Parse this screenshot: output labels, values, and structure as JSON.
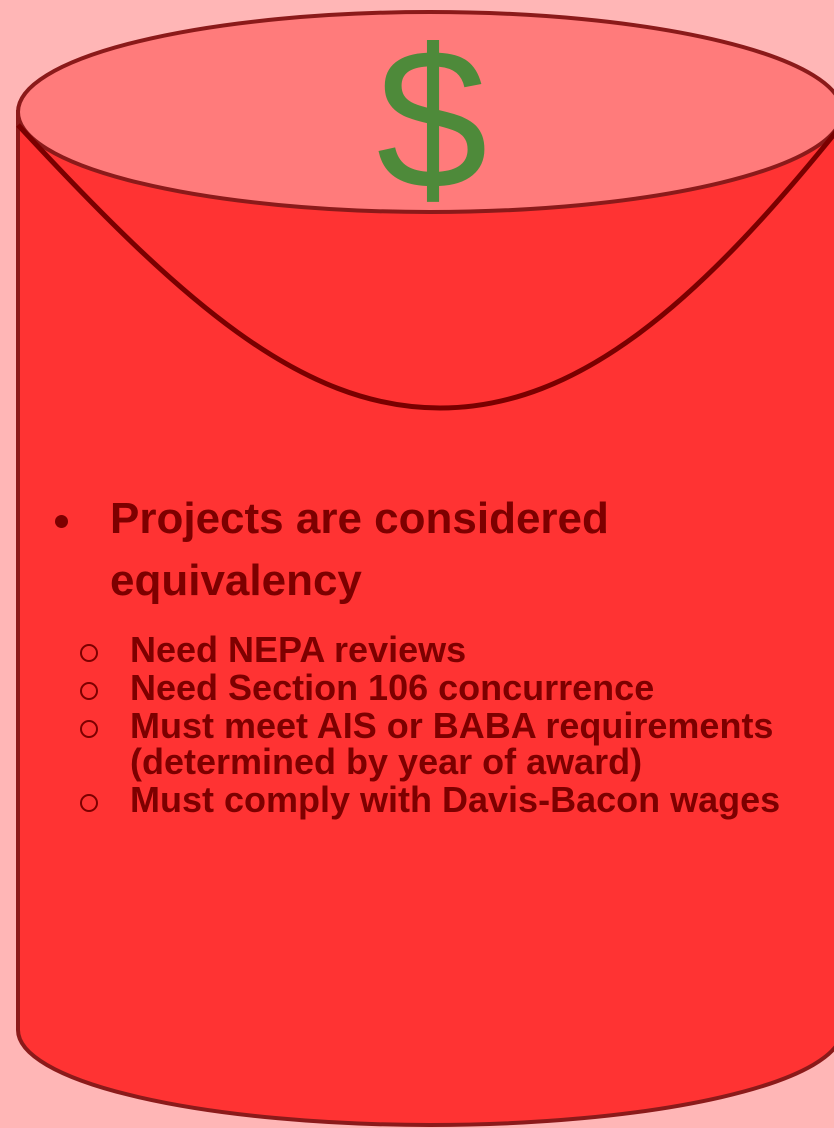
{
  "diagram": {
    "symbol": "$",
    "bullet": "Projects are considered equivalency",
    "sub_items": [
      "Need NEPA reviews",
      "Need Section 106 concurrence",
      "Must meet AIS or BABA requirements (determined by year of award)",
      "Must comply with Davis-Bacon wages"
    ]
  }
}
